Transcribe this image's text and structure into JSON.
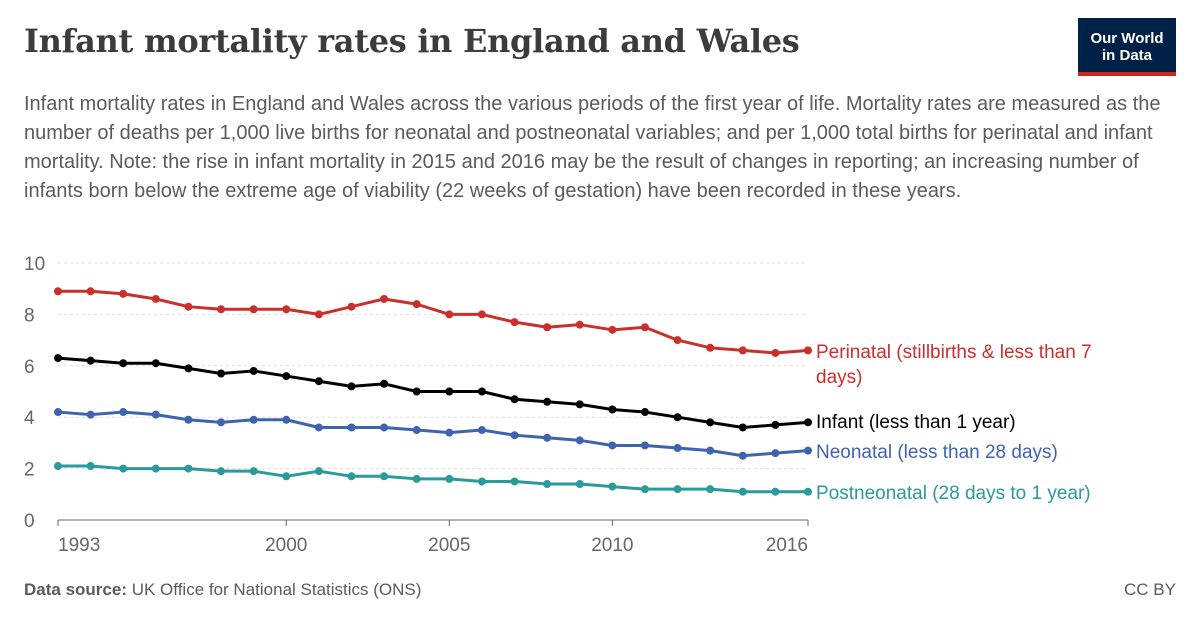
{
  "title": "Infant mortality rates in England and Wales",
  "subtitle": "Infant mortality rates in England and Wales across the various periods of the first year of life. Mortality rates are measured as the number of deaths per 1,000 live births for neonatal and postneonatal variables; and per 1,000 total births for perinatal and infant mortality. Note: the rise in infant mortality in 2015 and 2016 may be the result of changes in reporting; an increasing number of infants born below the extreme age of viability (22 weeks of gestation) have been recorded in these years.",
  "logo": {
    "line1": "Our World",
    "line2": "in Data"
  },
  "footer": {
    "source_label": "Data source:",
    "source_text": "UK Office for National Statistics (ONS)",
    "license": "CC BY"
  },
  "colors": {
    "perinatal": "#c9302c",
    "infant": "#000000",
    "neonatal": "#3d64b0",
    "postneonatal": "#2a9a9a",
    "grid": "#dddddd",
    "axis": "#666666",
    "tick_text": "#666666"
  },
  "chart_data": {
    "type": "line",
    "x": [
      1993,
      1994,
      1995,
      1996,
      1997,
      1998,
      1999,
      2000,
      2001,
      2002,
      2003,
      2004,
      2005,
      2006,
      2007,
      2008,
      2009,
      2010,
      2011,
      2012,
      2013,
      2014,
      2015,
      2016
    ],
    "xticks": [
      1993,
      2000,
      2005,
      2010,
      2016
    ],
    "xlim": [
      1993,
      2016
    ],
    "ylim": [
      0,
      10
    ],
    "yticks": [
      0,
      2,
      4,
      6,
      8,
      10
    ],
    "grid": "horizontal dashed",
    "legend": "inline labels at right end of lines",
    "series": [
      {
        "key": "perinatal",
        "name": "Perinatal (stillbirths & less than 7 days)",
        "label_lines": [
          "Perinatal (stillbirths & less than 7",
          "days)"
        ],
        "values": [
          8.9,
          8.9,
          8.8,
          8.6,
          8.3,
          8.2,
          8.2,
          8.2,
          8.0,
          8.3,
          8.6,
          8.4,
          8.0,
          8.0,
          7.7,
          7.5,
          7.6,
          7.4,
          7.5,
          7.0,
          6.7,
          6.6,
          6.5,
          6.6
        ]
      },
      {
        "key": "infant",
        "name": "Infant (less than 1 year)",
        "label_lines": [
          "Infant (less than 1 year)"
        ],
        "values": [
          6.3,
          6.2,
          6.1,
          6.1,
          5.9,
          5.7,
          5.8,
          5.6,
          5.4,
          5.2,
          5.3,
          5.0,
          5.0,
          5.0,
          4.7,
          4.6,
          4.5,
          4.3,
          4.2,
          4.0,
          3.8,
          3.6,
          3.7,
          3.8
        ]
      },
      {
        "key": "neonatal",
        "name": "Neonatal (less than 28 days)",
        "label_lines": [
          "Neonatal (less than 28 days)"
        ],
        "values": [
          4.2,
          4.1,
          4.2,
          4.1,
          3.9,
          3.8,
          3.9,
          3.9,
          3.6,
          3.6,
          3.6,
          3.5,
          3.4,
          3.5,
          3.3,
          3.2,
          3.1,
          2.9,
          2.9,
          2.8,
          2.7,
          2.5,
          2.6,
          2.7
        ]
      },
      {
        "key": "postneonatal",
        "name": "Postneonatal (28 days to 1 year)",
        "label_lines": [
          "Postneonatal (28 days to 1 year)"
        ],
        "values": [
          2.1,
          2.1,
          2.0,
          2.0,
          2.0,
          1.9,
          1.9,
          1.7,
          1.9,
          1.7,
          1.7,
          1.6,
          1.6,
          1.5,
          1.5,
          1.4,
          1.4,
          1.3,
          1.2,
          1.2,
          1.2,
          1.1,
          1.1,
          1.1
        ]
      }
    ]
  }
}
